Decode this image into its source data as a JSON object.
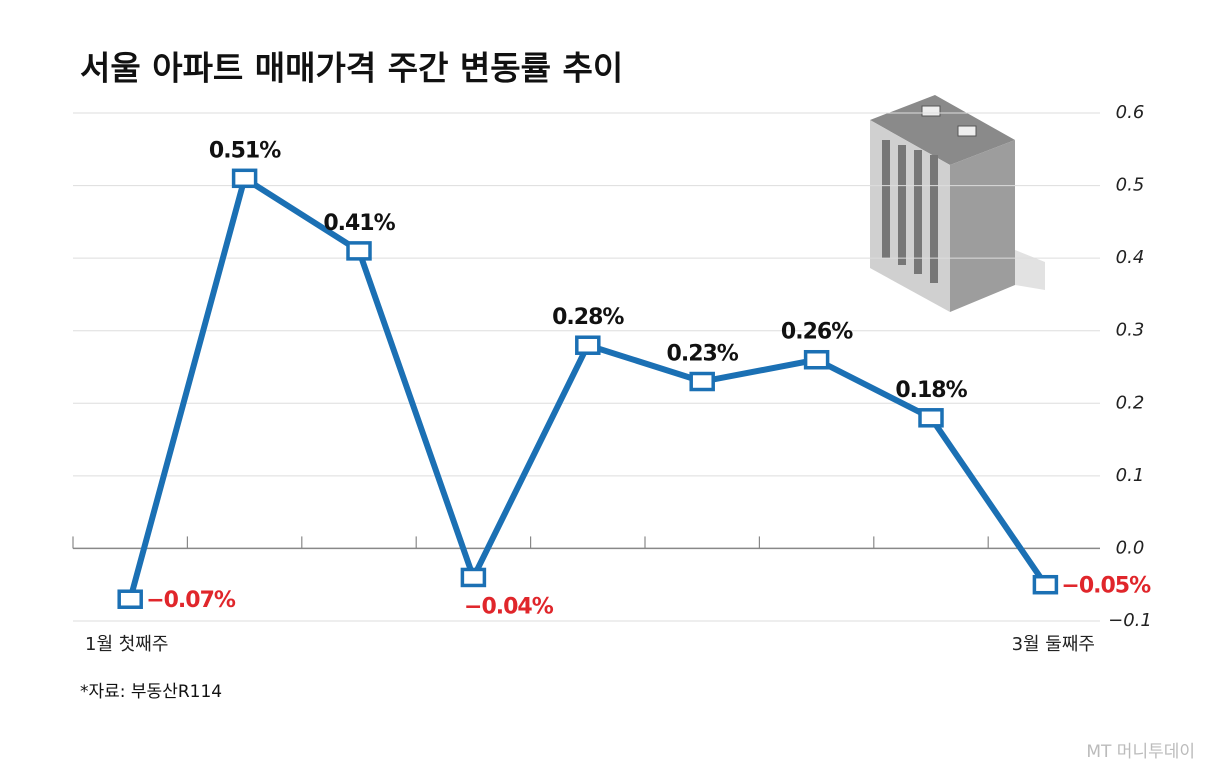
{
  "chart_data": {
    "type": "line",
    "title": "서울 아파트 매매가격 주간 변동률 추이",
    "categories": [
      "1월 첫째주",
      null,
      null,
      null,
      null,
      null,
      null,
      null,
      "3월 둘째주"
    ],
    "values": [
      -0.07,
      0.51,
      0.41,
      -0.04,
      0.28,
      0.23,
      0.26,
      0.18,
      -0.05
    ],
    "value_labels": [
      "−0.07%",
      "0.51%",
      "0.41%",
      "−0.04%",
      "0.28%",
      "0.23%",
      "0.26%",
      "0.18%",
      "−0.05%"
    ],
    "color": "#1b70b4",
    "negative_label_color": "#e0262b",
    "ylim": [
      -0.1,
      0.6
    ],
    "yticks": [
      0.6,
      0.5,
      0.4,
      0.3,
      0.2,
      0.1,
      {
        "value": 0,
        "label": "0.0"
      },
      {
        "value": -0.1,
        "label": "−0.1"
      }
    ],
    "grid": true,
    "source": "*자료: 부동산R114",
    "watermark": "MT 머니투데이"
  }
}
